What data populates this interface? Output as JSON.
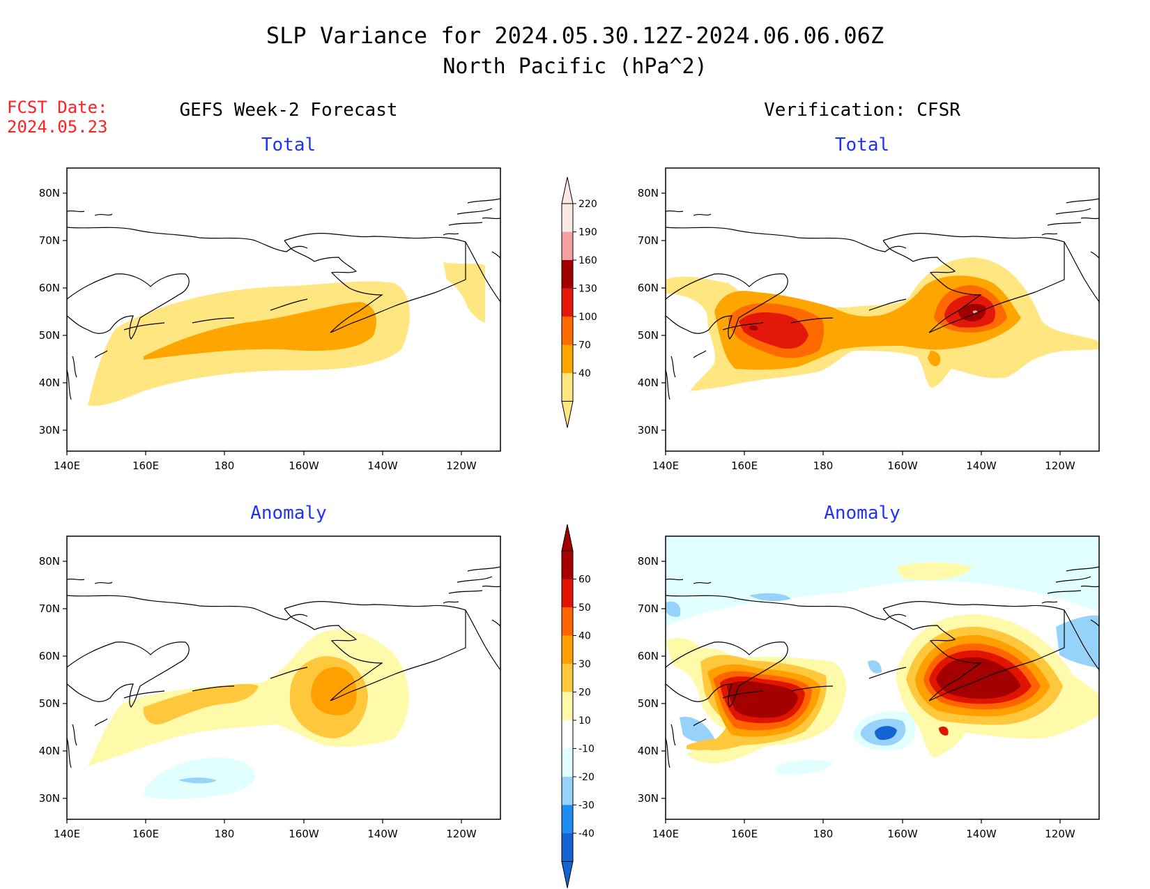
{
  "header": {
    "title_line1": "SLP Variance for 2024.05.30.12Z-2024.06.06.06Z",
    "title_line2": "North Pacific (hPa^2)",
    "fcst_label": "FCST Date:",
    "fcst_date": "2024.05.23",
    "left_column_title": "GEFS Week-2 Forecast",
    "right_column_title": "Verification: CFSR"
  },
  "panels": {
    "fcst_total": {
      "subtitle": "Total"
    },
    "verif_total": {
      "subtitle": "Total"
    },
    "fcst_anom": {
      "subtitle": "Anomaly"
    },
    "verif_anom": {
      "subtitle": "Anomaly"
    }
  },
  "axes": {
    "lon_labels": [
      "140E",
      "160E",
      "180",
      "160W",
      "140W",
      "120W"
    ],
    "lat_labels": [
      "80N",
      "70N",
      "60N",
      "50N",
      "40N",
      "30N"
    ]
  },
  "colorbars": {
    "total": {
      "labels": [
        "40",
        "70",
        "100",
        "130",
        "160",
        "190",
        "220"
      ],
      "colors": [
        "#ffe680",
        "#ffa500",
        "#ff6a00",
        "#e3170a",
        "#a00000",
        "#f4a0a0",
        "#fde8e8"
      ]
    },
    "anomaly": {
      "labels": [
        "-40",
        "-30",
        "-20",
        "-10",
        "10",
        "20",
        "30",
        "40",
        "50",
        "60"
      ],
      "colors": [
        "#1464d2",
        "#1e8cf0",
        "#96d2fa",
        "#e1ffff",
        "#ffffff",
        "#fffaaa",
        "#ffc83c",
        "#ffa000",
        "#ff6400",
        "#e11400",
        "#a50000"
      ]
    }
  }
}
